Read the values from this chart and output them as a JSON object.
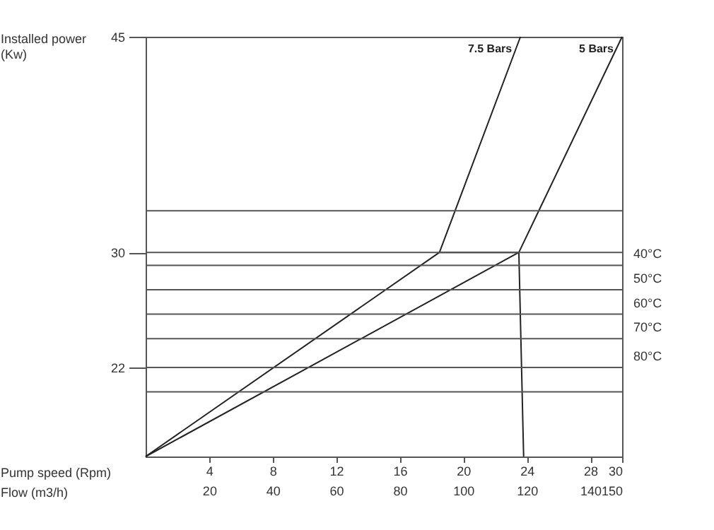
{
  "chart_data": {
    "type": "line",
    "xlabel": "Pump speed (Rpm)",
    "ylabel": "Installed power (Kw)",
    "x2label": "Flow (m3/h)",
    "xlim": [
      0,
      30
    ],
    "xticks": [
      4,
      8,
      12,
      16,
      20,
      24,
      28,
      30
    ],
    "x2lim": [
      0,
      150
    ],
    "x2ticks": [
      20,
      40,
      60,
      80,
      100,
      120,
      140,
      150
    ],
    "ylim": [
      15.8,
      45
    ],
    "yticks": [
      22,
      30,
      45
    ],
    "series": [
      {
        "name": "7.5 Bars",
        "color": "#222222",
        "x": [
          0,
          18.5,
          23.6
        ],
        "values": [
          15.8,
          30,
          45
        ]
      },
      {
        "name": "5 Bars",
        "color": "#222222",
        "x": [
          0,
          23.5,
          30
        ],
        "values": [
          15.8,
          30,
          45
        ]
      },
      {
        "color": "#222222",
        "x": [
          18.5,
          23.5,
          23.8
        ],
        "values": [
          30,
          30,
          15.8
        ]
      }
    ],
    "ref_lines": [
      {
        "axis": "y",
        "value": 32.9,
        "color": "#555555"
      },
      {
        "axis": "y",
        "value": 30,
        "color": "#555555"
      },
      {
        "axis": "y",
        "value": 29.1,
        "label": "40°C",
        "color": "#555555"
      },
      {
        "axis": "y",
        "value": 27.4,
        "label": "50°C",
        "color": "#555555"
      },
      {
        "axis": "y",
        "value": 25.7,
        "label": "60°C",
        "color": "#555555"
      },
      {
        "axis": "y",
        "value": 24,
        "label": "70°C",
        "color": "#555555"
      },
      {
        "axis": "y",
        "value": 22,
        "label": "80°C",
        "color": "#555555"
      },
      {
        "axis": "y",
        "value": 20.3,
        "color": "#555555"
      }
    ]
  }
}
